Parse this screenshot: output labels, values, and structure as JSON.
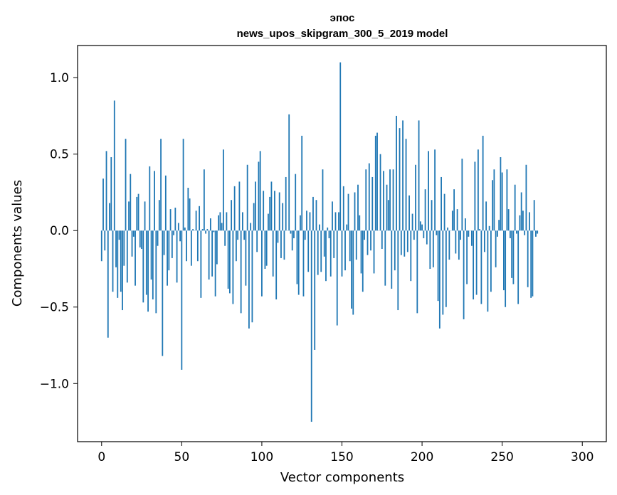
{
  "chart_data": {
    "type": "bar",
    "title_line1": "эпос",
    "title_line2": "news_upos_skipgram_300_5_2019 model",
    "xlabel": "Vector components",
    "ylabel": "Components values",
    "xlim": [
      -15,
      315
    ],
    "ylim": [
      -1.38,
      1.21
    ],
    "x_ticks": [
      0,
      50,
      100,
      150,
      200,
      250,
      300
    ],
    "x_tick_labels": [
      "0",
      "50",
      "100",
      "150",
      "200",
      "250",
      "300"
    ],
    "y_ticks": [
      -1.0,
      -0.5,
      0.0,
      0.5,
      1.0
    ],
    "y_tick_labels": [
      "−1.0",
      "−0.5",
      "0.0",
      "0.5",
      "1.0"
    ],
    "bar_color": "#1f77b4",
    "values": [
      -0.2,
      0.34,
      -0.13,
      0.52,
      -0.7,
      0.18,
      0.48,
      -0.4,
      0.85,
      -0.24,
      -0.44,
      -0.06,
      -0.4,
      -0.52,
      -0.23,
      0.6,
      -0.34,
      0.19,
      0.37,
      -0.17,
      -0.04,
      -0.36,
      0.22,
      0.24,
      -0.11,
      -0.12,
      -0.47,
      0.19,
      -0.42,
      -0.53,
      0.42,
      -0.32,
      -0.45,
      0.39,
      -0.54,
      -0.1,
      0.2,
      0.6,
      -0.82,
      -0.16,
      0.36,
      -0.36,
      -0.26,
      0.14,
      -0.18,
      -0.03,
      0.15,
      -0.34,
      0.05,
      -0.07,
      -0.91,
      0.6,
      0.02,
      -0.2,
      0.28,
      0.21,
      -0.23,
      0.01,
      0.0,
      0.13,
      -0.2,
      0.16,
      -0.44,
      0.01,
      0.4,
      -0.02,
      0.01,
      -0.32,
      0.08,
      -0.3,
      -0.01,
      -0.43,
      -0.22,
      0.1,
      0.12,
      0.05,
      0.53,
      -0.1,
      0.12,
      -0.38,
      -0.41,
      0.2,
      -0.48,
      0.29,
      -0.2,
      -0.06,
      0.32,
      -0.54,
      0.12,
      -0.06,
      -0.36,
      0.43,
      -0.64,
      0.05,
      -0.6,
      0.18,
      0.32,
      -0.14,
      0.45,
      0.52,
      -0.43,
      0.26,
      -0.25,
      -0.23,
      0.11,
      0.22,
      0.32,
      -0.3,
      0.26,
      -0.45,
      -0.08,
      0.25,
      -0.18,
      0.18,
      -0.19,
      0.35,
      0.0,
      0.76,
      -0.02,
      -0.13,
      -0.05,
      0.37,
      -0.35,
      -0.42,
      0.1,
      0.62,
      -0.43,
      -0.06,
      0.13,
      -0.27,
      0.12,
      -1.25,
      0.22,
      -0.78,
      0.2,
      -0.29,
      0.04,
      -0.27,
      0.4,
      -0.17,
      -0.33,
      0.02,
      -0.05,
      -0.3,
      0.19,
      -0.18,
      0.12,
      -0.62,
      0.12,
      1.1,
      -0.3,
      0.29,
      -0.26,
      0.04,
      0.24,
      -0.2,
      -0.51,
      -0.55,
      0.25,
      -0.19,
      0.3,
      0.1,
      -0.28,
      -0.4,
      -0.06,
      0.4,
      -0.16,
      0.44,
      -0.13,
      0.35,
      -0.28,
      0.62,
      0.64,
      0.0,
      0.5,
      -0.12,
      0.39,
      -0.36,
      0.3,
      0.2,
      0.4,
      -0.38,
      0.4,
      -0.26,
      0.75,
      -0.52,
      0.67,
      -0.16,
      0.72,
      -0.17,
      0.6,
      -0.14,
      0.23,
      -0.33,
      0.11,
      -0.06,
      0.43,
      -0.54,
      0.72,
      0.06,
      0.04,
      -0.05,
      0.27,
      -0.09,
      0.52,
      -0.25,
      0.2,
      -0.24,
      0.53,
      -0.03,
      -0.46,
      -0.64,
      0.35,
      -0.55,
      0.24,
      -0.5,
      0.02,
      -0.19,
      0.0,
      0.13,
      0.27,
      -0.15,
      0.14,
      -0.19,
      -0.06,
      0.47,
      -0.58,
      0.08,
      -0.35,
      -0.04,
      0.0,
      -0.1,
      -0.45,
      0.45,
      -0.42,
      0.53,
      0.01,
      -0.48,
      0.62,
      -0.14,
      0.19,
      -0.53,
      0.03,
      -0.4,
      0.33,
      0.4,
      -0.24,
      -0.04,
      0.07,
      0.48,
      0.38,
      -0.39,
      -0.5,
      0.4,
      0.14,
      -0.05,
      -0.31,
      -0.35,
      0.3,
      -0.02,
      -0.48,
      0.1,
      0.25,
      0.13,
      -0.03,
      0.43,
      -0.37,
      0.12,
      -0.44,
      -0.43,
      0.2,
      -0.04,
      -0.02
    ]
  }
}
